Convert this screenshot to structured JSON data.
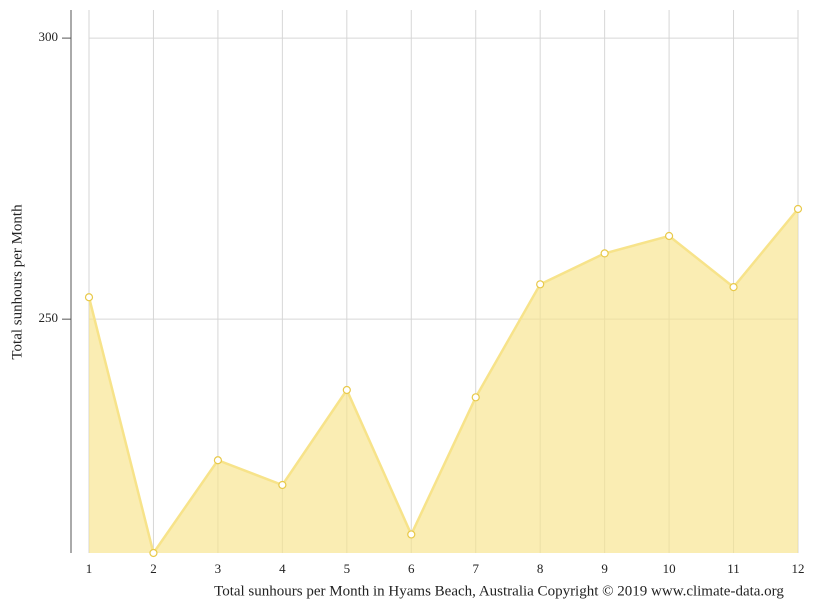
{
  "chart_data": {
    "type": "area",
    "title": "Total sunhours per Month in Hyams Beach, Australia Copyright © 2019 www.climate-data.org",
    "y_label": "Total sunhours per Month",
    "x": [
      1,
      2,
      3,
      4,
      5,
      6,
      7,
      8,
      9,
      10,
      11,
      12
    ],
    "values": [
      253.9,
      208.4,
      224.9,
      220.5,
      237.4,
      211.7,
      236.1,
      256.2,
      261.7,
      264.8,
      255.7,
      269.6
    ],
    "color": "#f7e38a",
    "xlim": [
      1,
      12
    ],
    "xticks": [
      1,
      2,
      3,
      4,
      5,
      6,
      7,
      8,
      9,
      10,
      11,
      12
    ],
    "ylim": [
      208.4,
      305
    ],
    "yticks": [
      250,
      300
    ],
    "grid": true
  }
}
